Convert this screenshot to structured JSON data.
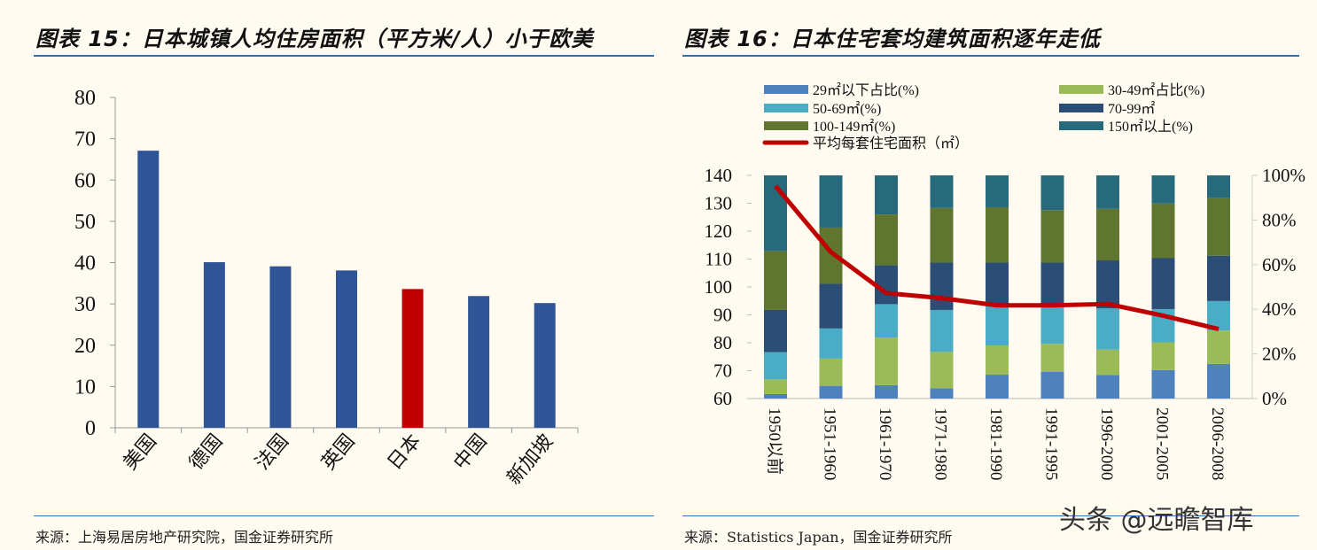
{
  "left_panel": {
    "title": "图表 15：日本城镇人均住房面积（平方米/人）小于欧美",
    "source": "来源：上海易居房地产研究院，国金证券研究所"
  },
  "right_panel": {
    "title": "图表 16：日本住宅套均建筑面积逐年走低",
    "source": "来源：Statistics Japan，国金证券研究所"
  },
  "watermark": "头条 @远瞻智库",
  "chart_data": [
    {
      "type": "bar",
      "categories": [
        "美国",
        "德国",
        "法国",
        "英国",
        "日本",
        "中国",
        "新加坡"
      ],
      "values": [
        67.1,
        40.1,
        39.1,
        38.1,
        33.6,
        31.9,
        30.2
      ],
      "ylim": [
        0,
        80
      ],
      "yticks": [
        "0",
        "10",
        "20",
        "30",
        "40",
        "50",
        "60",
        "70",
        "80"
      ],
      "colors": {
        "default": "#2f5597",
        "highlight": "#c00000"
      },
      "highlight_category": "日本",
      "grid": false
    },
    {
      "type": "bar",
      "stacked": true,
      "categories": [
        "1950以前",
        "1951-1960",
        "1961-1970",
        "1971-1980",
        "1981-1990",
        "1991-1995",
        "1996-2000",
        "2001-2005",
        "2006-2008"
      ],
      "series": [
        {
          "name": "29㎡以下占比(%)",
          "color": "#4f81bd",
          "values": [
            2.0,
            5.7,
            6.0,
            4.6,
            10.7,
            11.9,
            10.5,
            12.8,
            15.5
          ]
        },
        {
          "name": "30-49㎡占比(%)",
          "color": "#9bbb59",
          "values": [
            6.6,
            12.2,
            21.4,
            16.3,
            13.1,
            12.6,
            11.4,
            12.4,
            15.0
          ]
        },
        {
          "name": "50-69㎡(%)",
          "color": "#4bacc6",
          "values": [
            12.2,
            13.5,
            14.9,
            18.8,
            17.9,
            17.2,
            18.5,
            14.9,
            13.2
          ]
        },
        {
          "name": "70-99㎡",
          "color": "#2c4d75",
          "values": [
            18.9,
            20.0,
            17.4,
            21.2,
            19.2,
            19.2,
            21.5,
            22.8,
            20.3
          ]
        },
        {
          "name": "100-149㎡(%)",
          "color": "#5f7530",
          "values": [
            26.3,
            25.2,
            22.8,
            24.5,
            24.8,
            23.5,
            23.1,
            24.5,
            25.8
          ]
        },
        {
          "name": "150㎡以上(%)",
          "color": "#276a7c",
          "values": [
            34.0,
            23.4,
            17.5,
            14.6,
            14.3,
            15.6,
            15.0,
            12.6,
            10.2
          ]
        }
      ],
      "line": {
        "name": "平均每套住宅面积（㎡）",
        "color": "#c00000",
        "axis": "left",
        "values": [
          136.2,
          112.5,
          97.8,
          96.0,
          93.4,
          93.4,
          93.9,
          89.7,
          84.9
        ]
      },
      "ylim_left": [
        60,
        140
      ],
      "yticks_left": [
        "60",
        "70",
        "80",
        "90",
        "100",
        "110",
        "120",
        "130",
        "140"
      ],
      "ylim_right": [
        0,
        100
      ],
      "yticks_right": [
        "0%",
        "20%",
        "40%",
        "60%",
        "80%",
        "100%"
      ],
      "legend_position": "top",
      "grid": false
    }
  ]
}
